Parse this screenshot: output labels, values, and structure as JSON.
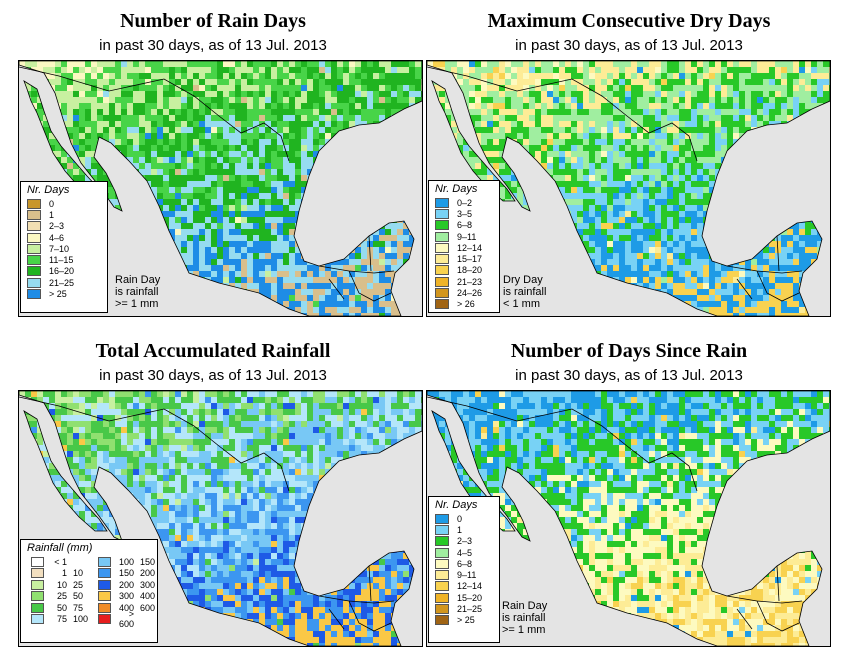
{
  "panels": [
    {
      "id": "rain-days",
      "title": "Number of Rain Days",
      "subtitle": "in past 30 days, as of  13 Jul. 2013",
      "legend_title": "Nr. Days",
      "legend": [
        {
          "label": "0",
          "color": "#c8962a"
        },
        {
          "label": "1",
          "color": "#d9bf8c"
        },
        {
          "label": "2–3",
          "color": "#f2dfb3"
        },
        {
          "label": "4–6",
          "color": "#fbf8c2"
        },
        {
          "label": "7–10",
          "color": "#c8f0a0"
        },
        {
          "label": "11–15",
          "color": "#48d448"
        },
        {
          "label": "16–20",
          "color": "#20b420"
        },
        {
          "label": "21–25",
          "color": "#96dcf0"
        },
        {
          "label": "> 25",
          "color": "#1e8ce6"
        }
      ],
      "note": [
        "Rain Day",
        "is rainfall",
        ">= 1 mm"
      ],
      "palette": [
        "#fbf8c2",
        "#c8f0a0",
        "#48d448",
        "#20b420",
        "#96dcf0",
        "#1e8ce6",
        "#d9bf8c"
      ]
    },
    {
      "id": "dry-days",
      "title": "Maximum Consecutive Dry Days",
      "subtitle": "in past 30 days, as of  13 Jul. 2013",
      "legend_title": "Nr. Days",
      "legend": [
        {
          "label": "0–2",
          "color": "#1e9be6"
        },
        {
          "label": "3–5",
          "color": "#78d2f5"
        },
        {
          "label": "6–8",
          "color": "#28c828"
        },
        {
          "label": "9–11",
          "color": "#a0eea0"
        },
        {
          "label": "12–14",
          "color": "#fdfac0"
        },
        {
          "label": "15–17",
          "color": "#fdec96"
        },
        {
          "label": "18–20",
          "color": "#f8d250"
        },
        {
          "label": "21–23",
          "color": "#f0b428"
        },
        {
          "label": "24–26",
          "color": "#d2961e"
        },
        {
          "label": "> 26",
          "color": "#a06414"
        }
      ],
      "note": [
        "Dry Day",
        "is rainfall",
        "< 1 mm"
      ],
      "palette": [
        "#fdfac0",
        "#fdec96",
        "#a0eea0",
        "#28c828",
        "#78d2f5",
        "#1e9be6",
        "#f8d250"
      ]
    },
    {
      "id": "total-rainfall",
      "title": "Total Accumulated Rainfall",
      "subtitle": "in past 30 days, as of  13 Jul. 2013",
      "legend_title": "Rainfall (mm)",
      "legend": [
        {
          "a": "< 1",
          "b": "",
          "color": "#ffffff"
        },
        {
          "a": "1",
          "b": "10",
          "color": "#f2dfc0"
        },
        {
          "a": "10",
          "b": "25",
          "color": "#c8f0a0"
        },
        {
          "a": "25",
          "b": "50",
          "color": "#90e070"
        },
        {
          "a": "50",
          "b": "75",
          "color": "#48c848"
        },
        {
          "a": "75",
          "b": "100",
          "color": "#b4e6fa"
        },
        {
          "a": "100",
          "b": "150",
          "color": "#78c8f5"
        },
        {
          "a": "150",
          "b": "200",
          "color": "#3c96f0"
        },
        {
          "a": "200",
          "b": "300",
          "color": "#1e5ae6"
        },
        {
          "a": "300",
          "b": "400",
          "color": "#fac846"
        },
        {
          "a": "400",
          "b": "600",
          "color": "#f08c28"
        },
        {
          "a": "> 600",
          "b": "",
          "color": "#e61e1e"
        }
      ],
      "palette": [
        "#c8f0a0",
        "#90e070",
        "#48c848",
        "#b4e6fa",
        "#78c8f5",
        "#3c96f0",
        "#1e5ae6",
        "#fac846"
      ]
    },
    {
      "id": "days-since-rain",
      "title": "Number of Days Since Rain",
      "subtitle": "in past 30 days, as of  13 Jul. 2013",
      "legend_title": "Nr. Days",
      "legend": [
        {
          "label": "0",
          "color": "#1e9be6"
        },
        {
          "label": "1",
          "color": "#78d2f5"
        },
        {
          "label": "2–3",
          "color": "#28c828"
        },
        {
          "label": "4–5",
          "color": "#a0eea0"
        },
        {
          "label": "6–8",
          "color": "#fdfac0"
        },
        {
          "label": "9–11",
          "color": "#fdec96"
        },
        {
          "label": "12–14",
          "color": "#f8d250"
        },
        {
          "label": "15–20",
          "color": "#f0b428"
        },
        {
          "label": "21–25",
          "color": "#d2961e"
        },
        {
          "label": "> 25",
          "color": "#a06414"
        }
      ],
      "note": [
        "Rain Day",
        "is rainfall",
        ">= 1 mm"
      ],
      "palette": [
        "#1e9be6",
        "#1e9be6",
        "#78d2f5",
        "#28c828",
        "#fdfac0",
        "#fdec96",
        "#f8d250"
      ]
    }
  ]
}
